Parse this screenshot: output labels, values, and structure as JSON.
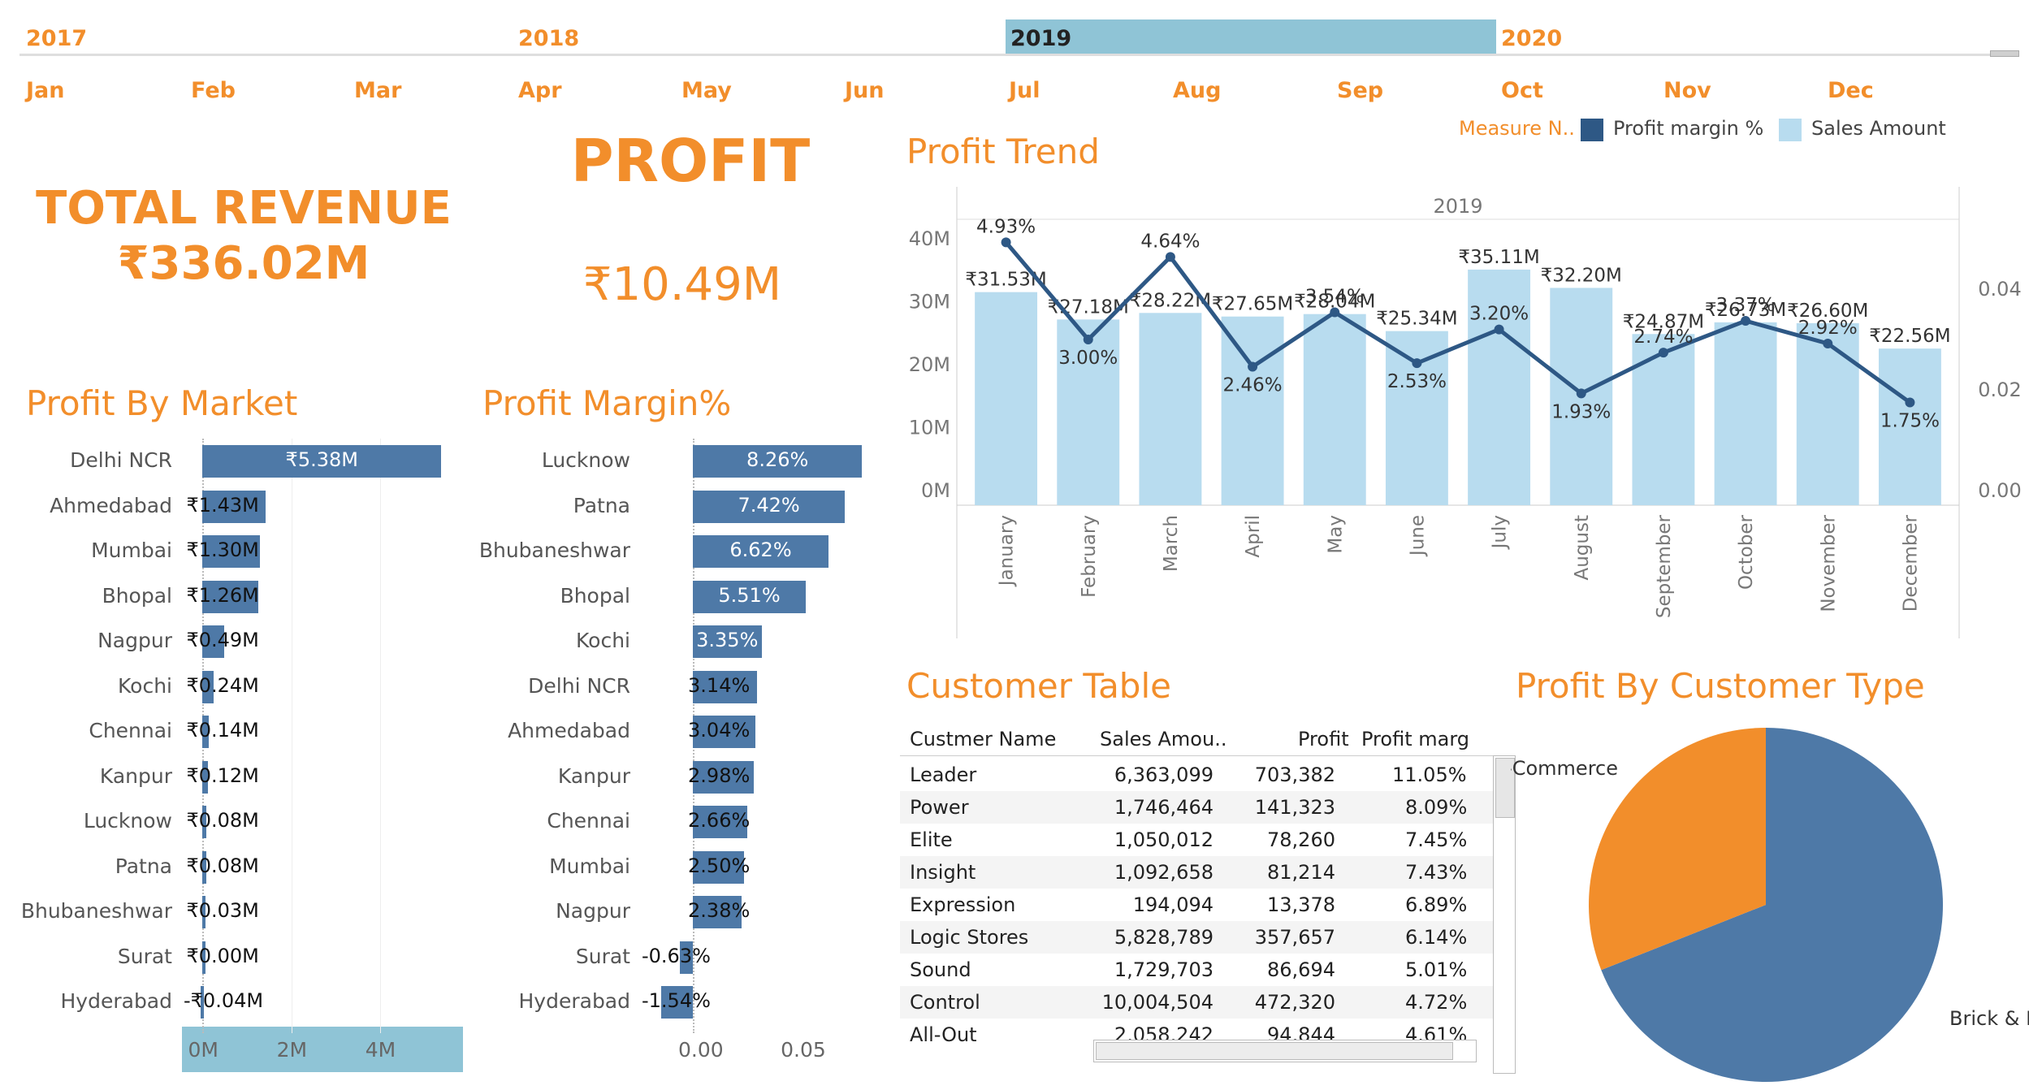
{
  "filters": {
    "years": [
      "2017",
      "2018",
      "2019",
      "2020"
    ],
    "selected_year": "2019",
    "months": [
      "Jan",
      "Feb",
      "Mar",
      "Apr",
      "May",
      "Jun",
      "Jul",
      "Aug",
      "Sep",
      "Oct",
      "Nov",
      "Dec"
    ]
  },
  "kpi": {
    "revenue_title": "TOTAL REVENUE",
    "revenue_value": "₹336.02M",
    "profit_title": "PROFIT",
    "profit_value": "₹10.49M"
  },
  "titles": {
    "profit_by_market": "Profit By Market",
    "profit_margin": "Profit Margin%",
    "profit_trend": "Profit Trend",
    "customer_table": "Customer Table",
    "profit_by_customer_type": "Profit By Customer Type"
  },
  "legend": {
    "title": "Measure N..",
    "items": [
      {
        "label": "Profit margin %",
        "color": "#2e5885"
      },
      {
        "label": "Sales Amount",
        "color": "#b8dcef"
      }
    ]
  },
  "chart_data": [
    {
      "id": "profit_by_market",
      "type": "bar",
      "orientation": "horizontal",
      "categories": [
        "Delhi NCR",
        "Ahmedabad",
        "Mumbai",
        "Bhopal",
        "Nagpur",
        "Kochi",
        "Chennai",
        "Kanpur",
        "Lucknow",
        "Patna",
        "Bhubaneshwar",
        "Surat",
        "Hyderabad"
      ],
      "values": [
        5.38,
        1.43,
        1.3,
        1.26,
        0.49,
        0.24,
        0.14,
        0.12,
        0.08,
        0.08,
        0.03,
        0.0,
        -0.04
      ],
      "labels": [
        "₹5.38M",
        "₹1.43M",
        "₹1.30M",
        "₹1.26M",
        "₹0.49M",
        "₹0.24M",
        "₹0.14M",
        "₹0.12M",
        "₹0.08M",
        "₹0.08M",
        "₹0.03M",
        "₹0.00M",
        "-₹0.04M"
      ],
      "xticks": [
        "0M",
        "2M",
        "4M"
      ],
      "xlim": [
        -0.1,
        5.8
      ],
      "color": "#4e79a7"
    },
    {
      "id": "profit_margin",
      "type": "bar",
      "orientation": "horizontal",
      "categories": [
        "Lucknow",
        "Patna",
        "Bhubaneshwar",
        "Bhopal",
        "Kochi",
        "Delhi NCR",
        "Ahmedabad",
        "Kanpur",
        "Chennai",
        "Mumbai",
        "Nagpur",
        "Surat",
        "Hyderabad"
      ],
      "values": [
        8.26,
        7.42,
        6.62,
        5.51,
        3.35,
        3.14,
        3.04,
        2.98,
        2.66,
        2.5,
        2.38,
        -0.63,
        -1.54
      ],
      "labels": [
        "8.26%",
        "7.42%",
        "6.62%",
        "5.51%",
        "3.35%",
        "3.14%",
        "3.04%",
        "2.98%",
        "2.66%",
        "2.50%",
        "2.38%",
        "-0.63%",
        "-1.54%"
      ],
      "xticks": [
        "0.00",
        "0.05"
      ],
      "xlim": [
        -2.5,
        9.0
      ],
      "color": "#4e79a7"
    },
    {
      "id": "profit_trend",
      "type": "bar",
      "header": "2019",
      "categories": [
        "January",
        "February",
        "March",
        "April",
        "May",
        "June",
        "July",
        "August",
        "September",
        "October",
        "November",
        "December"
      ],
      "series": [
        {
          "name": "Sales Amount",
          "type": "bar",
          "values": [
            31.53,
            27.18,
            28.22,
            27.65,
            28.04,
            25.34,
            35.11,
            32.2,
            24.87,
            26.73,
            26.6,
            22.56
          ],
          "labels": [
            "₹31.53M",
            "₹27.18M",
            "₹28.22M",
            "₹27.65M",
            "₹28.04M",
            "₹25.34M",
            "₹35.11M",
            "₹32.20M",
            "₹24.87M",
            "₹26.73M",
            "₹26.60M",
            "₹22.56M"
          ]
        },
        {
          "name": "Profit margin %",
          "type": "line",
          "values": [
            4.93,
            3.0,
            4.64,
            2.46,
            3.54,
            2.53,
            3.2,
            1.93,
            2.74,
            3.37,
            2.92,
            1.75
          ],
          "labels": [
            "4.93%",
            "3.00%",
            "4.64%",
            "2.46%",
            "3.54%",
            "2.53%",
            "3.20%",
            "1.93%",
            "2.74%",
            "3.37%",
            "2.92%",
            "1.75%"
          ]
        }
      ],
      "yticks_left": [
        "0M",
        "10M",
        "20M",
        "30M",
        "40M"
      ],
      "ylim_left": [
        0,
        40
      ],
      "yticks_right": [
        "0.00",
        "0.02",
        "0.04"
      ],
      "ylim_right": [
        0,
        0.05
      ],
      "legend_position": "top-right"
    },
    {
      "id": "profit_by_customer_type",
      "type": "pie",
      "categories": [
        "Brick & Mortar",
        "E-Commerce"
      ],
      "values": [
        69.0,
        31.0
      ],
      "colors": [
        "#4e79a7",
        "#f28e2b"
      ]
    }
  ],
  "customer_table": {
    "columns": [
      "Custmer Name",
      "Sales Amou..",
      "Profit",
      "Profit marg"
    ],
    "rows": [
      [
        "Leader",
        "6,363,099",
        "703,382",
        "11.05%"
      ],
      [
        "Power",
        "1,746,464",
        "141,323",
        "8.09%"
      ],
      [
        "Elite",
        "1,050,012",
        "78,260",
        "7.45%"
      ],
      [
        "Insight",
        "1,092,658",
        "81,214",
        "7.43%"
      ],
      [
        "Expression",
        "194,094",
        "13,378",
        "6.89%"
      ],
      [
        "Logic Stores",
        "5,828,789",
        "357,657",
        "6.14%"
      ],
      [
        "Sound",
        "1,729,703",
        "86,694",
        "5.01%"
      ],
      [
        "Control",
        "10,004,504",
        "472,320",
        "4.72%"
      ],
      [
        "All-Out",
        "2,058,242",
        "94,844",
        "4.61%"
      ]
    ]
  }
}
